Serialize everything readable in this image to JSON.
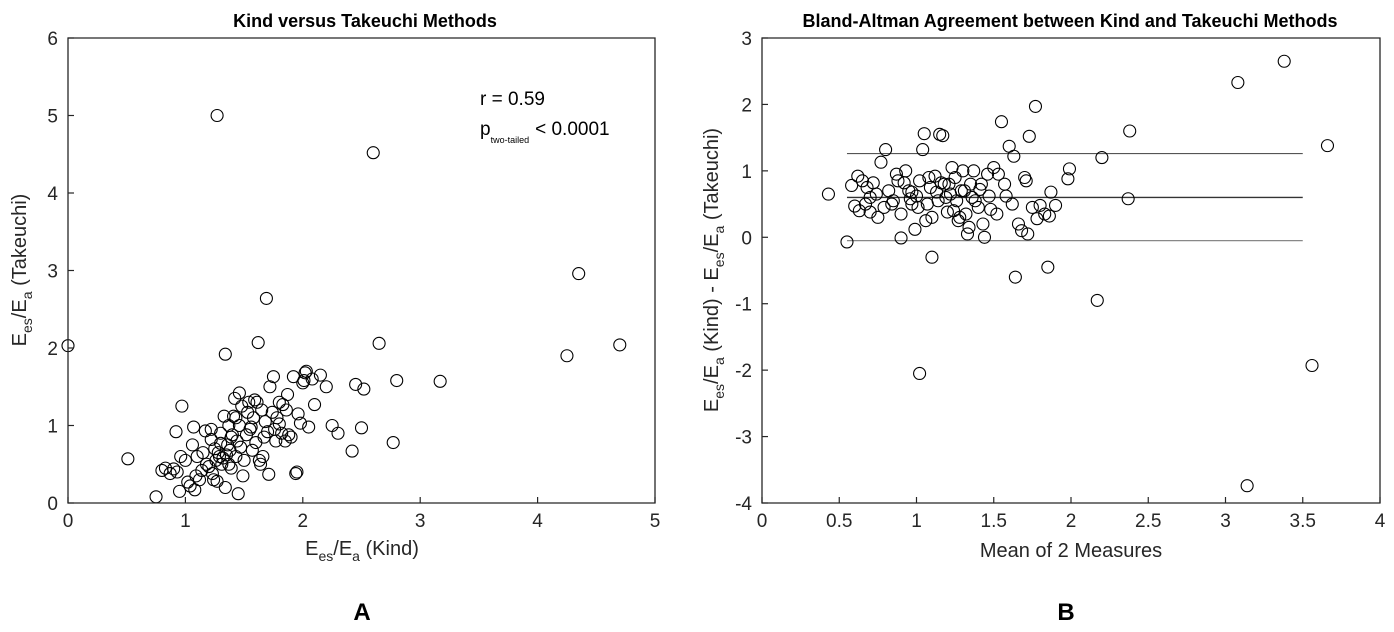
{
  "chart_data": [
    {
      "type": "scatter",
      "title": "Kind versus Takeuchi Methods",
      "xlabel": {
        "main": "E",
        "sub1": "es",
        "mid": "/E",
        "sub2": "a",
        "tail": " (Kind)"
      },
      "ylabel": {
        "main": "E",
        "sub1": "es",
        "mid": "/E",
        "sub2": "a",
        "tail": " (Takeuchi)"
      },
      "xlim": [
        0,
        5
      ],
      "ylim": [
        0,
        6
      ],
      "xticks": [
        0,
        1,
        2,
        3,
        4,
        5
      ],
      "yticks": [
        0,
        1,
        2,
        3,
        4,
        5,
        6
      ],
      "grid": false,
      "annotation": {
        "r": "r = 0.59",
        "p_main": "p",
        "p_sub": "two-tailed",
        "p_value": "< 0.0001"
      },
      "panel_label": "A",
      "points": [
        [
          0.0,
          2.03
        ],
        [
          0.51,
          0.57
        ],
        [
          0.75,
          0.08
        ],
        [
          0.8,
          0.42
        ],
        [
          0.83,
          0.45
        ],
        [
          0.87,
          0.38
        ],
        [
          0.9,
          0.44
        ],
        [
          0.92,
          0.92
        ],
        [
          0.93,
          0.4
        ],
        [
          0.95,
          0.15
        ],
        [
          0.97,
          1.25
        ],
        [
          1.0,
          0.55
        ],
        [
          1.02,
          0.27
        ],
        [
          1.04,
          0.22
        ],
        [
          1.06,
          0.75
        ],
        [
          1.07,
          0.98
        ],
        [
          1.08,
          0.17
        ],
        [
          1.1,
          0.6
        ],
        [
          1.12,
          0.3
        ],
        [
          1.14,
          0.42
        ],
        [
          1.17,
          0.93
        ],
        [
          1.2,
          0.47
        ],
        [
          1.22,
          0.82
        ],
        [
          1.23,
          0.38
        ],
        [
          1.25,
          0.7
        ],
        [
          1.26,
          0.55
        ],
        [
          1.27,
          0.28
        ],
        [
          1.28,
          0.65
        ],
        [
          1.29,
          0.6
        ],
        [
          1.3,
          0.9
        ],
        [
          1.31,
          0.5
        ],
        [
          1.32,
          0.58
        ],
        [
          1.33,
          1.12
        ],
        [
          1.34,
          0.2
        ],
        [
          1.35,
          0.62
        ],
        [
          1.36,
          0.75
        ],
        [
          1.37,
          1.0
        ],
        [
          1.38,
          0.68
        ],
        [
          1.39,
          0.45
        ],
        [
          1.4,
          0.88
        ],
        [
          1.41,
          1.12
        ],
        [
          1.42,
          1.35
        ],
        [
          1.43,
          0.6
        ],
        [
          1.44,
          0.8
        ],
        [
          1.45,
          0.12
        ],
        [
          1.46,
          1.0
        ],
        [
          1.47,
          0.72
        ],
        [
          1.48,
          1.25
        ],
        [
          1.5,
          0.55
        ],
        [
          1.52,
          0.88
        ],
        [
          1.53,
          1.17
        ],
        [
          1.55,
          0.95
        ],
        [
          1.57,
          0.68
        ],
        [
          1.59,
          1.33
        ],
        [
          1.6,
          0.78
        ],
        [
          1.62,
          2.07
        ],
        [
          1.64,
          0.5
        ],
        [
          1.65,
          1.2
        ],
        [
          1.67,
          0.85
        ],
        [
          1.68,
          1.05
        ],
        [
          1.7,
          0.92
        ],
        [
          1.71,
          0.37
        ],
        [
          1.72,
          1.5
        ],
        [
          1.74,
          1.17
        ],
        [
          1.75,
          1.63
        ],
        [
          1.77,
          0.8
        ],
        [
          1.78,
          1.1
        ],
        [
          1.8,
          1.02
        ],
        [
          1.82,
          0.9
        ],
        [
          1.83,
          1.27
        ],
        [
          1.85,
          0.8
        ],
        [
          1.87,
          1.4
        ],
        [
          1.9,
          0.85
        ],
        [
          1.92,
          1.63
        ],
        [
          1.94,
          0.38
        ],
        [
          1.96,
          1.15
        ],
        [
          1.98,
          1.03
        ],
        [
          2.0,
          1.55
        ],
        [
          2.02,
          1.68
        ],
        [
          2.03,
          1.7
        ],
        [
          2.05,
          0.98
        ],
        [
          2.08,
          1.6
        ],
        [
          2.1,
          1.27
        ],
        [
          2.15,
          1.65
        ],
        [
          2.2,
          1.5
        ],
        [
          2.25,
          1.0
        ],
        [
          2.3,
          0.9
        ],
        [
          2.42,
          0.67
        ],
        [
          2.45,
          1.53
        ],
        [
          2.5,
          0.97
        ],
        [
          2.52,
          1.47
        ],
        [
          2.6,
          4.52
        ],
        [
          2.65,
          2.06
        ],
        [
          2.77,
          0.78
        ],
        [
          2.8,
          1.58
        ],
        [
          3.17,
          1.57
        ],
        [
          4.25,
          1.9
        ],
        [
          4.35,
          2.96
        ],
        [
          4.7,
          2.04
        ],
        [
          1.27,
          5.0
        ],
        [
          1.69,
          2.64
        ],
        [
          1.34,
          1.92
        ],
        [
          1.46,
          1.42
        ],
        [
          1.54,
          1.3
        ],
        [
          1.22,
          0.95
        ],
        [
          1.18,
          0.5
        ],
        [
          1.39,
          0.85
        ],
        [
          1.15,
          0.65
        ],
        [
          1.09,
          0.35
        ],
        [
          0.96,
          0.6
        ],
        [
          1.3,
          0.77
        ],
        [
          1.43,
          1.1
        ],
        [
          1.56,
          0.98
        ],
        [
          1.63,
          0.55
        ],
        [
          1.76,
          0.95
        ],
        [
          1.86,
          1.2
        ],
        [
          1.95,
          0.4
        ],
        [
          1.61,
          1.3
        ],
        [
          1.49,
          0.35
        ],
        [
          1.24,
          0.3
        ],
        [
          1.37,
          0.5
        ],
        [
          1.58,
          1.1
        ],
        [
          1.66,
          0.6
        ],
        [
          1.8,
          1.3
        ],
        [
          2.01,
          1.58
        ],
        [
          1.88,
          0.88
        ]
      ]
    },
    {
      "type": "scatter",
      "title": "Bland-Altman Agreement between Kind and Takeuchi Methods",
      "xlabel": "Mean of 2 Measures",
      "ylabel": {
        "main": "E",
        "sub1": "es",
        "mid": "/E",
        "sub2": "a",
        "tail1": " (Kind) - E",
        "sub3": "es",
        "mid2": "/E",
        "sub4": "a",
        "tail2": " (Takeuchi)"
      },
      "xlim": [
        0,
        4
      ],
      "ylim": [
        -4,
        3
      ],
      "xticks": [
        0,
        0.5,
        1,
        1.5,
        2,
        2.5,
        3,
        3.5,
        4
      ],
      "xticklabels": [
        "0",
        "0.5",
        "1",
        "1.5",
        "2",
        "2.5",
        "3",
        "3.5",
        "4"
      ],
      "yticks": [
        -4,
        -3,
        -2,
        -1,
        0,
        1,
        2,
        3
      ],
      "grid": false,
      "panel_label": "B",
      "lines": {
        "mean": 0.6,
        "upper_loa": 1.26,
        "lower_loa": -0.05,
        "x_range": [
          0.55,
          3.5
        ]
      },
      "points": [
        [
          0.43,
          0.65
        ],
        [
          0.55,
          -0.07
        ],
        [
          0.58,
          0.78
        ],
        [
          0.62,
          0.92
        ],
        [
          0.63,
          0.4
        ],
        [
          0.65,
          0.85
        ],
        [
          0.67,
          0.5
        ],
        [
          0.7,
          0.6
        ],
        [
          0.72,
          0.82
        ],
        [
          0.75,
          0.3
        ],
        [
          0.77,
          1.13
        ],
        [
          0.79,
          0.45
        ],
        [
          0.8,
          1.32
        ],
        [
          0.82,
          0.7
        ],
        [
          0.85,
          0.55
        ],
        [
          0.87,
          0.95
        ],
        [
          0.9,
          0.35
        ],
        [
          0.9,
          -0.01
        ],
        [
          0.92,
          0.82
        ],
        [
          0.93,
          1.0
        ],
        [
          0.95,
          0.7
        ],
        [
          0.97,
          0.5
        ],
        [
          0.99,
          0.12
        ],
        [
          1.0,
          0.62
        ],
        [
          1.02,
          0.85
        ],
        [
          1.02,
          -2.05
        ],
        [
          1.04,
          1.32
        ],
        [
          1.05,
          1.56
        ],
        [
          1.07,
          0.5
        ],
        [
          1.09,
          0.75
        ],
        [
          1.1,
          0.3
        ],
        [
          1.1,
          -0.3
        ],
        [
          1.12,
          0.92
        ],
        [
          1.14,
          0.55
        ],
        [
          1.15,
          1.55
        ],
        [
          1.17,
          1.53
        ],
        [
          1.18,
          0.8
        ],
        [
          1.2,
          0.38
        ],
        [
          1.22,
          0.65
        ],
        [
          1.24,
          0.4
        ],
        [
          1.25,
          0.9
        ],
        [
          1.27,
          0.25
        ],
        [
          1.29,
          0.7
        ],
        [
          1.3,
          1.0
        ],
        [
          1.32,
          0.35
        ],
        [
          1.33,
          0.05
        ],
        [
          1.35,
          0.8
        ],
        [
          1.37,
          1.0
        ],
        [
          1.4,
          0.45
        ],
        [
          1.42,
          0.8
        ],
        [
          1.43,
          0.2
        ],
        [
          1.44,
          0.0
        ],
        [
          1.47,
          0.62
        ],
        [
          1.5,
          1.05
        ],
        [
          1.52,
          0.35
        ],
        [
          1.55,
          1.74
        ],
        [
          1.57,
          0.8
        ],
        [
          1.6,
          1.37
        ],
        [
          1.62,
          0.5
        ],
        [
          1.64,
          -0.6
        ],
        [
          1.66,
          0.2
        ],
        [
          1.68,
          0.1
        ],
        [
          1.7,
          0.9
        ],
        [
          1.73,
          1.52
        ],
        [
          1.75,
          0.45
        ],
        [
          1.77,
          1.97
        ],
        [
          1.8,
          0.48
        ],
        [
          1.83,
          0.35
        ],
        [
          1.85,
          -0.45
        ],
        [
          1.87,
          0.68
        ],
        [
          1.9,
          0.48
        ],
        [
          1.98,
          0.88
        ],
        [
          1.99,
          1.03
        ],
        [
          2.17,
          -0.95
        ],
        [
          2.2,
          1.2
        ],
        [
          2.37,
          0.58
        ],
        [
          2.38,
          1.6
        ],
        [
          3.08,
          2.33
        ],
        [
          3.14,
          -3.74
        ],
        [
          3.38,
          2.65
        ],
        [
          3.56,
          -1.93
        ],
        [
          3.66,
          1.38
        ],
        [
          0.6,
          0.47
        ],
        [
          0.68,
          0.75
        ],
        [
          0.84,
          0.5
        ],
        [
          0.97,
          0.68
        ],
        [
          1.06,
          0.25
        ],
        [
          1.13,
          0.68
        ],
        [
          1.21,
          0.8
        ],
        [
          1.26,
          0.55
        ],
        [
          1.31,
          0.7
        ],
        [
          1.38,
          0.55
        ],
        [
          1.46,
          0.95
        ],
        [
          1.58,
          0.62
        ],
        [
          1.72,
          0.05
        ],
        [
          1.78,
          0.28
        ],
        [
          0.74,
          0.65
        ],
        [
          0.88,
          0.85
        ],
        [
          1.01,
          0.45
        ],
        [
          1.16,
          0.82
        ],
        [
          1.28,
          0.3
        ],
        [
          1.41,
          0.72
        ],
        [
          1.53,
          0.95
        ],
        [
          1.63,
          1.22
        ],
        [
          1.71,
          0.85
        ],
        [
          1.86,
          0.32
        ],
        [
          0.96,
          0.58
        ],
        [
          1.08,
          0.9
        ],
        [
          1.19,
          0.6
        ],
        [
          1.34,
          0.15
        ],
        [
          1.48,
          0.42
        ],
        [
          0.7,
          0.38
        ],
        [
          1.23,
          1.05
        ],
        [
          1.36,
          0.6
        ]
      ]
    }
  ]
}
